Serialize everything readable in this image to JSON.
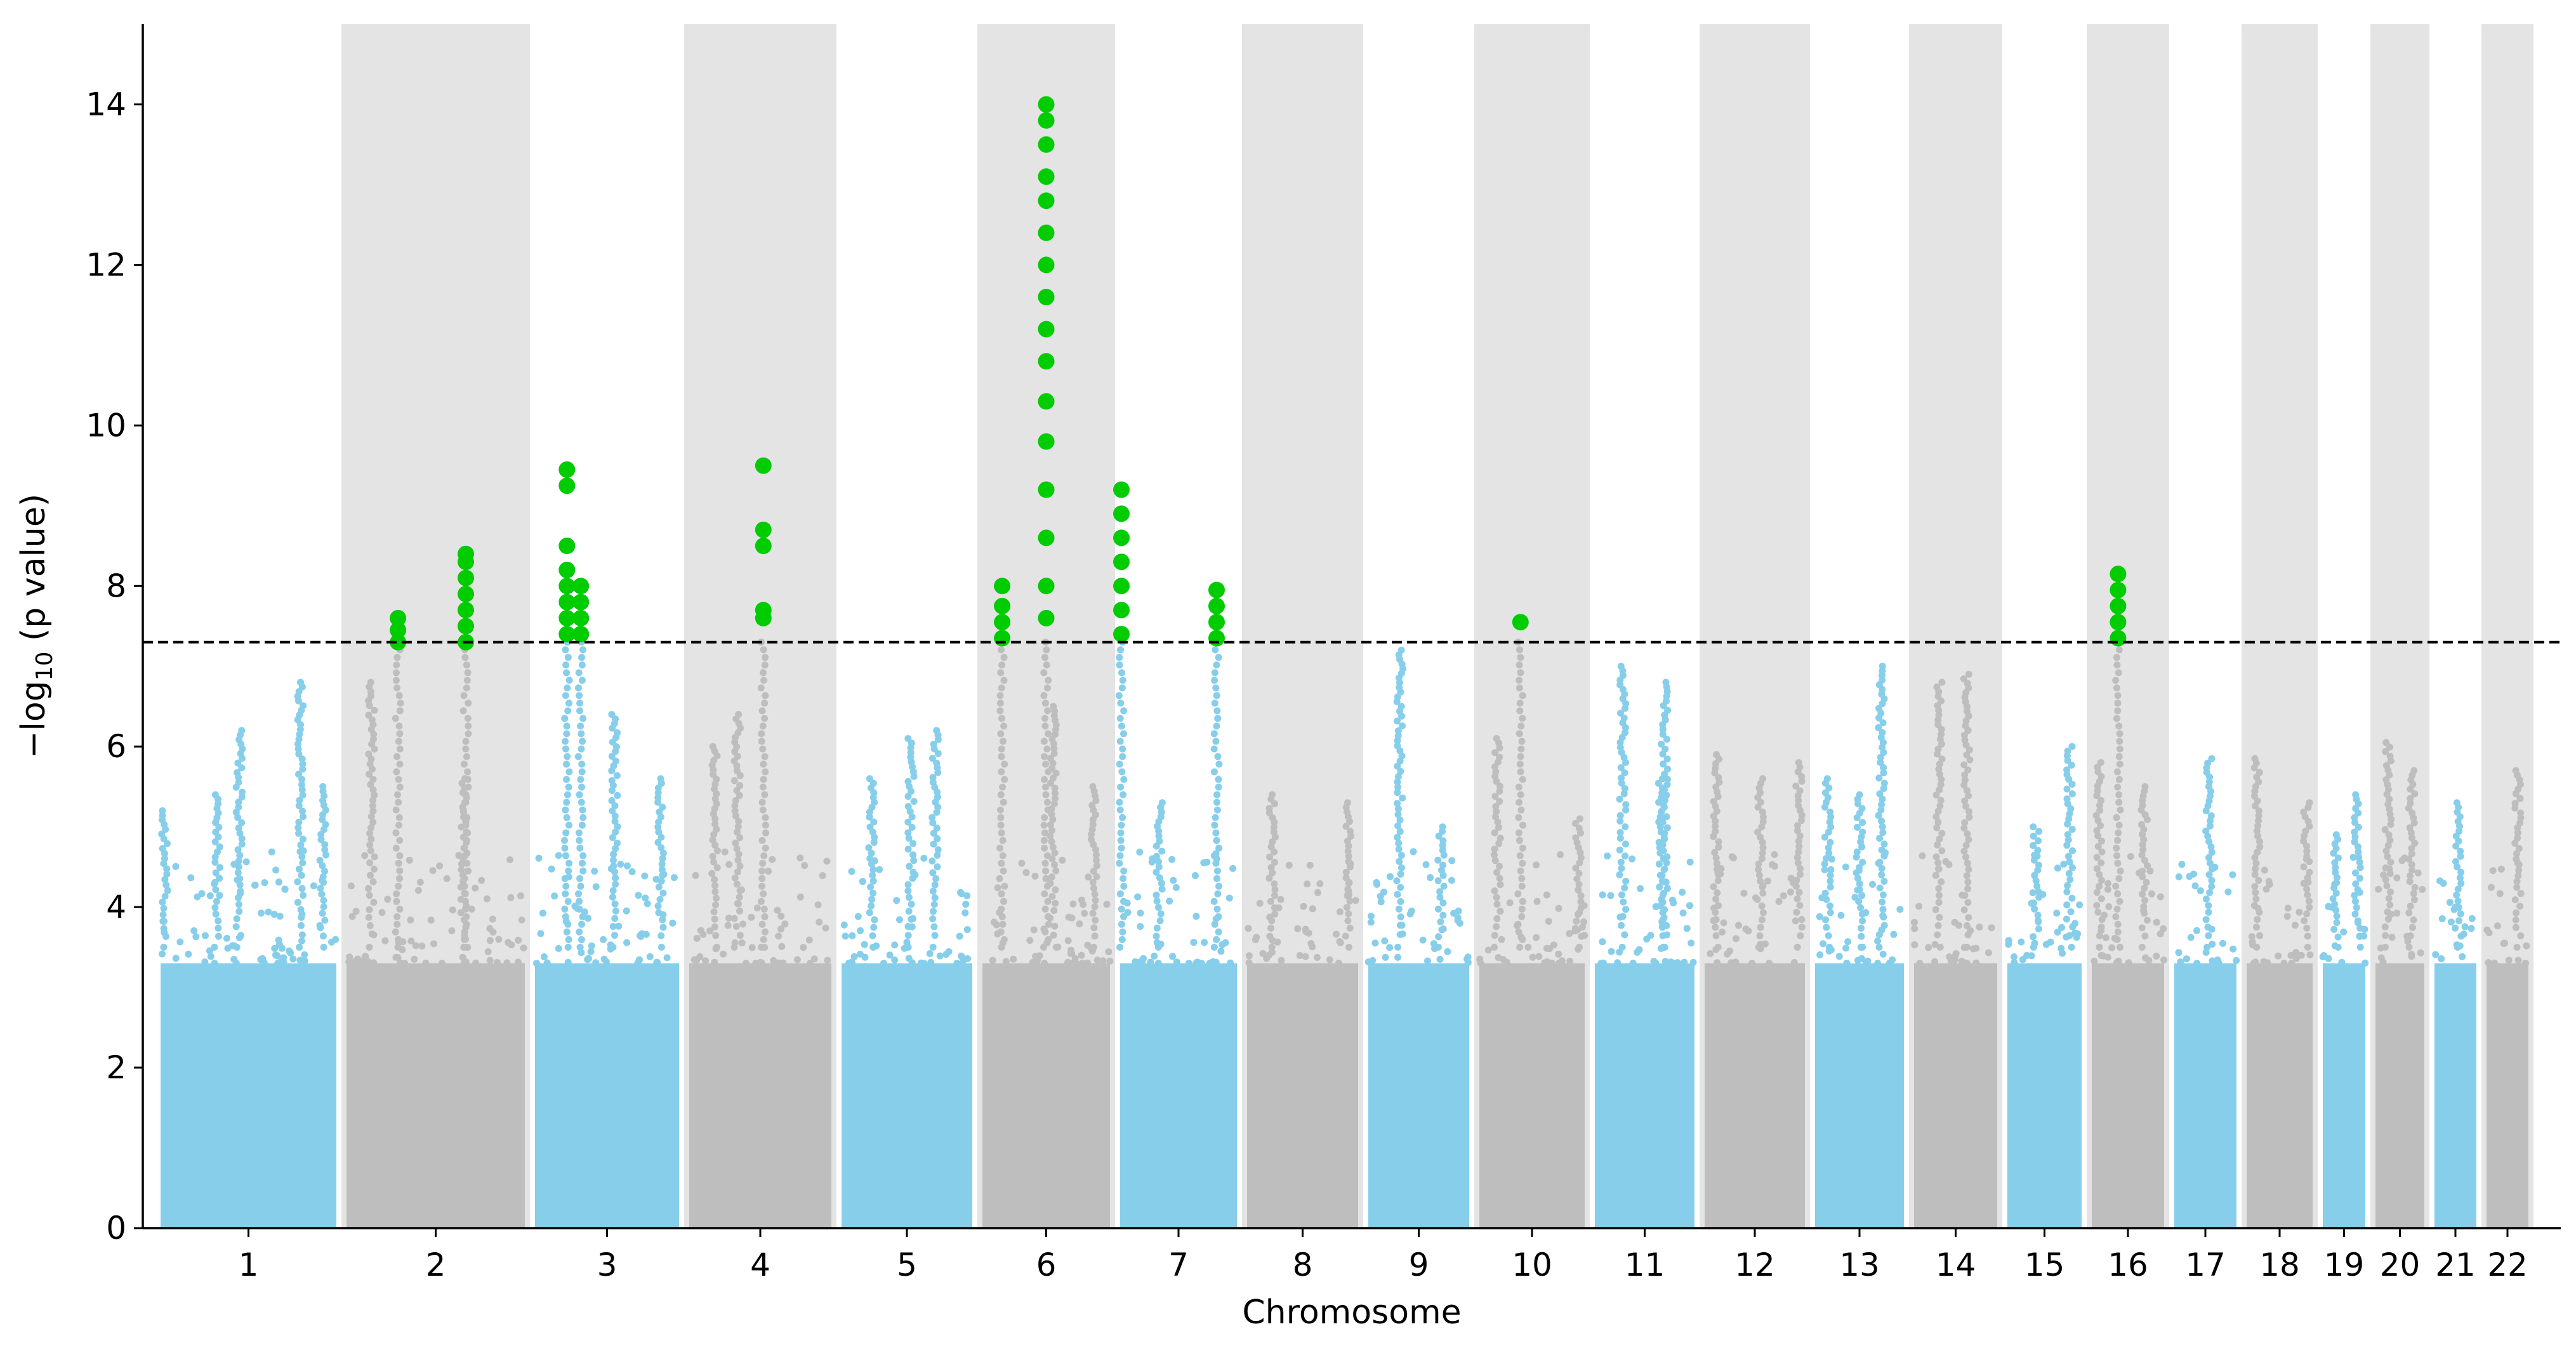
{
  "chart_data": {
    "type": "scatter",
    "subtype": "manhattan",
    "title": "",
    "xlabel": "Chromosome",
    "ylabel_main": "−log",
    "ylabel_sub": "10",
    "ylabel_rest": " (p value)",
    "ylim": [
      0,
      15
    ],
    "yticks": [
      0,
      2,
      4,
      6,
      8,
      10,
      12,
      14
    ],
    "threshold": 7.3,
    "colors": {
      "odd_chromosome": "#87ceeb",
      "even_chromosome": "#bebebe",
      "significant": "#00cc00",
      "even_band": "#e4e4e4",
      "threshold_line": "#000000"
    },
    "chromosomes": [
      {
        "label": "1",
        "peaks": [
          {
            "pos": 0.05,
            "p": 5.2
          },
          {
            "pos": 0.33,
            "p": 5.4
          },
          {
            "pos": 0.45,
            "p": 6.2
          },
          {
            "pos": 0.78,
            "p": 6.8
          },
          {
            "pos": 0.9,
            "p": 5.5
          }
        ],
        "hits": []
      },
      {
        "label": "2",
        "peaks": [
          {
            "pos": 0.16,
            "p": 6.8
          },
          {
            "pos": 0.65,
            "p": 5.6
          }
        ],
        "hits": [
          {
            "pos": 0.3,
            "values": [
              7.3,
              7.45,
              7.6
            ]
          },
          {
            "pos": 0.66,
            "values": [
              7.3,
              7.5,
              7.7,
              7.9,
              8.1,
              8.3,
              8.4
            ]
          }
        ]
      },
      {
        "label": "3",
        "peaks": [
          {
            "pos": 0.55,
            "p": 6.4
          },
          {
            "pos": 0.85,
            "p": 5.6
          }
        ],
        "hits": [
          {
            "pos": 0.24,
            "values": [
              7.4,
              7.6,
              7.8,
              8.0,
              8.2,
              8.5,
              9.25,
              9.45
            ]
          },
          {
            "pos": 0.33,
            "values": [
              7.4,
              7.6,
              7.8,
              8.0
            ]
          }
        ]
      },
      {
        "label": "4",
        "peaks": [
          {
            "pos": 0.2,
            "p": 6.0
          },
          {
            "pos": 0.35,
            "p": 6.4
          }
        ],
        "hits": [
          {
            "pos": 0.52,
            "values": [
              7.6,
              7.7,
              8.5,
              8.7,
              9.5
            ]
          }
        ]
      },
      {
        "label": "5",
        "peaks": [
          {
            "pos": 0.25,
            "p": 5.6
          },
          {
            "pos": 0.53,
            "p": 6.1
          },
          {
            "pos": 0.7,
            "p": 6.2
          }
        ]
      },
      {
        "label": "6",
        "peaks": [
          {
            "pos": 0.55,
            "p": 6.5
          },
          {
            "pos": 0.85,
            "p": 5.5
          }
        ],
        "hits": [
          {
            "pos": 0.18,
            "values": [
              7.35,
              7.55,
              7.75,
              8.0
            ]
          },
          {
            "pos": 0.5,
            "values": [
              7.6,
              8.0,
              8.6,
              9.2,
              9.8,
              10.3,
              10.8,
              11.2,
              11.6,
              12.0,
              12.4,
              12.8,
              13.1,
              13.5,
              13.8,
              14.0
            ]
          }
        ]
      },
      {
        "label": "7",
        "peaks": [
          {
            "pos": 0.35,
            "p": 5.3
          }
        ],
        "hits": [
          {
            "pos": 0.05,
            "values": [
              7.4,
              7.7,
              8.0,
              8.3,
              8.6,
              8.9,
              9.2
            ]
          },
          {
            "pos": 0.8,
            "values": [
              7.35,
              7.55,
              7.75,
              7.95
            ]
          }
        ]
      },
      {
        "label": "8",
        "peaks": [
          {
            "pos": 0.25,
            "p": 5.4
          },
          {
            "pos": 0.88,
            "p": 5.3
          }
        ]
      },
      {
        "label": "9",
        "peaks": [
          {
            "pos": 0.33,
            "p": 7.2
          },
          {
            "pos": 0.7,
            "p": 5.0
          }
        ]
      },
      {
        "label": "10",
        "peaks": [
          {
            "pos": 0.2,
            "p": 6.1
          },
          {
            "pos": 0.9,
            "p": 5.1
          }
        ],
        "hits": [
          {
            "pos": 0.4,
            "values": [
              7.55
            ]
          }
        ]
      },
      {
        "label": "11",
        "peaks": [
          {
            "pos": 0.3,
            "p": 7.0
          },
          {
            "pos": 0.65,
            "p": 5.6
          },
          {
            "pos": 0.68,
            "p": 6.8
          }
        ]
      },
      {
        "label": "12",
        "peaks": [
          {
            "pos": 0.15,
            "p": 5.9
          },
          {
            "pos": 0.55,
            "p": 5.6
          },
          {
            "pos": 0.9,
            "p": 5.8
          }
        ]
      },
      {
        "label": "13",
        "peaks": [
          {
            "pos": 0.18,
            "p": 5.6
          },
          {
            "pos": 0.5,
            "p": 5.4
          },
          {
            "pos": 0.72,
            "p": 7.0
          }
        ]
      },
      {
        "label": "14",
        "peaks": [
          {
            "pos": 0.32,
            "p": 6.8
          },
          {
            "pos": 0.62,
            "p": 6.9
          }
        ]
      },
      {
        "label": "15",
        "peaks": [
          {
            "pos": 0.4,
            "p": 5.0
          },
          {
            "pos": 0.8,
            "p": 6.0
          }
        ]
      },
      {
        "label": "16",
        "peaks": [
          {
            "pos": 0.15,
            "p": 5.8
          },
          {
            "pos": 0.7,
            "p": 5.5
          }
        ],
        "hits": [
          {
            "pos": 0.38,
            "values": [
              7.35,
              7.55,
              7.75,
              7.95,
              8.15
            ]
          }
        ]
      },
      {
        "label": "17",
        "peaks": [
          {
            "pos": 0.55,
            "p": 5.85
          }
        ]
      },
      {
        "label": "18",
        "peaks": [
          {
            "pos": 0.2,
            "p": 5.85
          },
          {
            "pos": 0.85,
            "p": 5.3
          }
        ]
      },
      {
        "label": "19",
        "peaks": [
          {
            "pos": 0.35,
            "p": 4.9
          },
          {
            "pos": 0.75,
            "p": 5.4
          }
        ]
      },
      {
        "label": "20",
        "peaks": [
          {
            "pos": 0.3,
            "p": 6.05
          },
          {
            "pos": 0.7,
            "p": 5.7
          }
        ]
      },
      {
        "label": "21",
        "peaks": [
          {
            "pos": 0.55,
            "p": 5.3
          }
        ]
      },
      {
        "label": "22",
        "peaks": [
          {
            "pos": 0.7,
            "p": 5.7
          }
        ]
      }
    ]
  }
}
